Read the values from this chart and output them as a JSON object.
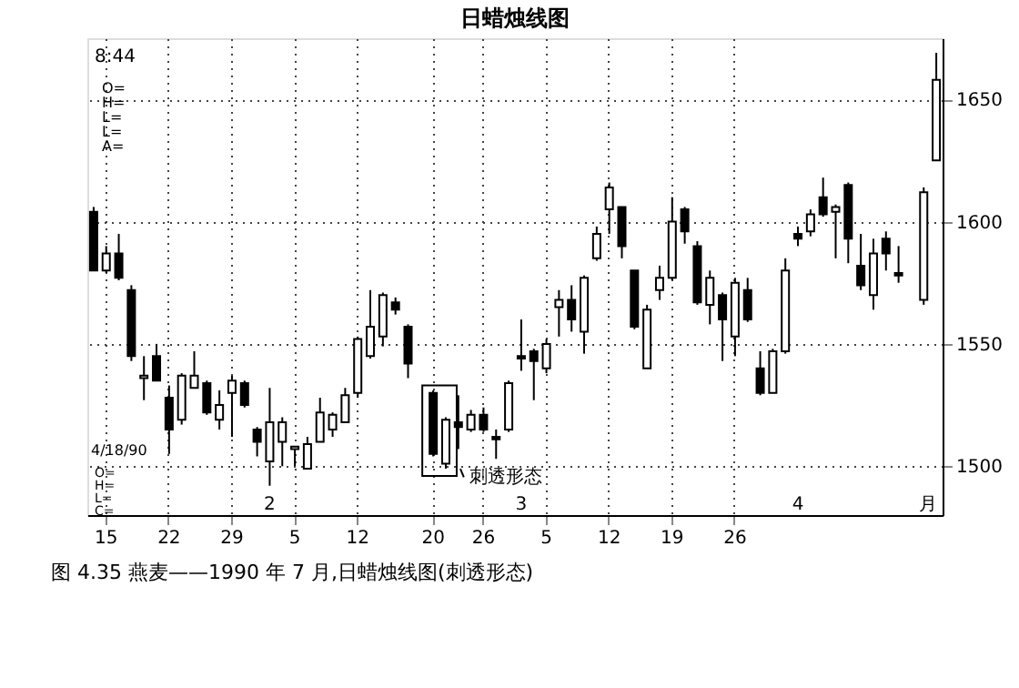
{
  "chart_data": {
    "type": "candlestick",
    "title": "日蜡烛线图",
    "categories": [
      null,
      "15",
      null,
      null,
      null,
      null,
      "22",
      null,
      null,
      null,
      null,
      "29",
      null,
      null,
      null,
      null,
      "5",
      null,
      null,
      null,
      null,
      "12",
      null,
      null,
      null,
      null,
      null,
      "20",
      null,
      null,
      null,
      "26",
      null,
      null,
      null,
      null,
      "5",
      null,
      null,
      null,
      null,
      "12",
      null,
      null,
      null,
      null,
      "19",
      null,
      null,
      null,
      null,
      "26",
      null,
      null,
      null,
      null,
      null,
      null,
      null,
      null,
      null,
      null,
      null,
      null,
      null,
      null,
      null,
      null
    ],
    "ohlc": [
      [
        1604,
        1606,
        1580,
        1580
      ],
      [
        1580,
        1590,
        1579,
        1587
      ],
      [
        1587,
        1595,
        1576,
        1577
      ],
      [
        1572,
        1574,
        1543,
        1545
      ],
      [
        1536,
        1545,
        1527,
        1537
      ],
      [
        1545,
        1550,
        1535,
        1535
      ],
      [
        1528,
        1533,
        1505,
        1515
      ],
      [
        1519,
        1538,
        1517,
        1537
      ],
      [
        1532,
        1547,
        1532,
        1537
      ],
      [
        1534,
        1535,
        1521,
        1522
      ],
      [
        1519,
        1531,
        1515,
        1525
      ],
      [
        1530,
        1537,
        1512,
        1535
      ],
      [
        1534,
        1535,
        1524,
        1525
      ],
      [
        1515,
        1516,
        1504,
        1510
      ],
      [
        1502,
        1532,
        1492,
        1518
      ],
      [
        1510,
        1520,
        1500,
        1518
      ],
      [
        1507,
        1508,
        1500,
        1508
      ],
      [
        1499,
        1512,
        1499,
        1509
      ],
      [
        1510,
        1528,
        1510,
        1522
      ],
      [
        1515,
        1522,
        1512,
        1521
      ],
      [
        1518,
        1532,
        1518,
        1529
      ],
      [
        1530,
        1553,
        1528,
        1552
      ],
      [
        1545,
        1572,
        1544,
        1557
      ],
      [
        1553,
        1571,
        1549,
        1570
      ],
      [
        1567,
        1569,
        1562,
        1564
      ],
      [
        1557,
        1558,
        1536,
        1542
      ],
      null,
      [
        1530,
        1531,
        1504,
        1505
      ],
      [
        1501,
        1520,
        1499,
        1519
      ],
      [
        1518,
        1529,
        1507,
        1516
      ],
      [
        1515,
        1523,
        1514,
        1521
      ],
      [
        1521,
        1524,
        1514,
        1515
      ],
      [
        1512,
        1515,
        1503,
        1511
      ],
      [
        1515,
        1535,
        1514,
        1534
      ],
      [
        1545,
        1560,
        1539,
        1544
      ],
      [
        1547,
        1548,
        1527,
        1543
      ],
      [
        1540,
        1552,
        1538,
        1550
      ],
      [
        1565,
        1572,
        1553,
        1568
      ],
      [
        1568,
        1574,
        1555,
        1560
      ],
      [
        1555,
        1578,
        1546,
        1577
      ],
      [
        1585,
        1598,
        1584,
        1595
      ],
      [
        1605,
        1616,
        1595,
        1614
      ],
      [
        1606,
        1606,
        1585,
        1590
      ],
      [
        1580,
        1580,
        1556,
        1557
      ],
      [
        1540,
        1566,
        1540,
        1564
      ],
      [
        1572,
        1582,
        1568,
        1577
      ],
      [
        1577,
        1610,
        1576,
        1600
      ],
      [
        1605,
        1606,
        1591,
        1596
      ],
      [
        1590,
        1592,
        1566,
        1567
      ],
      [
        1566,
        1580,
        1558,
        1577
      ],
      [
        1570,
        1571,
        1543,
        1560
      ],
      [
        1553,
        1577,
        1545,
        1575
      ],
      [
        1572,
        1577,
        1559,
        1560
      ],
      [
        1540,
        1547,
        1529,
        1530
      ],
      [
        1530,
        1548,
        1530,
        1547
      ],
      [
        1547,
        1585,
        1546,
        1580
      ],
      [
        1595,
        1598,
        1590,
        1593
      ],
      [
        1596,
        1605,
        1594,
        1603
      ],
      [
        1610,
        1618,
        1602,
        1603
      ],
      [
        1604,
        1607,
        1585,
        1606
      ],
      [
        1615,
        1616,
        1583,
        1593
      ],
      [
        1582,
        1595,
        1572,
        1574
      ],
      [
        1570,
        1593,
        1564,
        1587
      ],
      [
        1593,
        1596,
        1580,
        1587
      ],
      [
        1579,
        1590,
        1575,
        1578
      ],
      null,
      [
        1568,
        1614,
        1566,
        1612
      ],
      [
        1625,
        1669,
        1625,
        1658
      ]
    ],
    "ylim": [
      1480,
      1675
    ],
    "yticks": [
      1500,
      1550,
      1600,
      1650
    ],
    "grid": true,
    "annotations": [
      "8:44",
      "O=\nH=\nL=\nL=\nA=",
      "4/18/90",
      "O=\nH=\nL=\nC=",
      "刺透形态",
      "2",
      "3",
      "4",
      "月",
      "图 4.35  燕麦——1990 年 7 月,日蜡烛线图(刺透形态)"
    ]
  }
}
